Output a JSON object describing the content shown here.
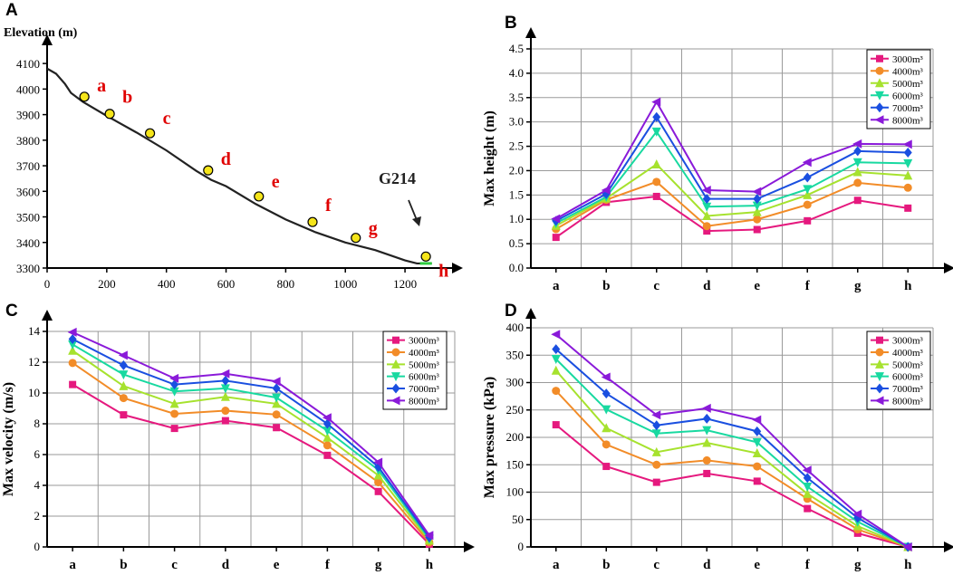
{
  "chart_data": [
    {
      "panel": "A",
      "type": "line",
      "ylabel": "Elevation (m)",
      "xlim": [
        0,
        1300
      ],
      "ylim": [
        3300,
        4150
      ],
      "xticks": [
        0,
        200,
        400,
        600,
        800,
        1000,
        1200
      ],
      "yticks": [
        3300,
        3400,
        3500,
        3600,
        3700,
        3800,
        3900,
        4000,
        4100
      ],
      "profile": {
        "x": [
          0,
          30,
          60,
          80,
          120,
          200,
          300,
          400,
          500,
          550,
          600,
          700,
          800,
          900,
          1000,
          1100,
          1200,
          1240,
          1290
        ],
        "y": [
          4080,
          4060,
          4020,
          3985,
          3950,
          3895,
          3830,
          3760,
          3680,
          3645,
          3620,
          3550,
          3490,
          3440,
          3400,
          3370,
          3330,
          3318,
          3318
        ]
      },
      "points": [
        {
          "label": "a",
          "x": 125,
          "y": 3970
        },
        {
          "label": "b",
          "x": 210,
          "y": 3903
        },
        {
          "label": "c",
          "x": 345,
          "y": 3827
        },
        {
          "label": "d",
          "x": 540,
          "y": 3682
        },
        {
          "label": "e",
          "x": 710,
          "y": 3580
        },
        {
          "label": "f",
          "x": 890,
          "y": 3480
        },
        {
          "label": "g",
          "x": 1035,
          "y": 3418
        },
        {
          "label": "h",
          "x": 1270,
          "y": 3345
        }
      ],
      "annotation": "G214"
    },
    {
      "panel": "B",
      "type": "line",
      "ylabel": "Max height (m)",
      "categories": [
        "a",
        "b",
        "c",
        "d",
        "e",
        "f",
        "g",
        "h"
      ],
      "ylim": [
        0,
        4.5
      ],
      "yticks": [
        "0.0",
        "0.5",
        "1.0",
        "1.5",
        "2.0",
        "2.5",
        "3.0",
        "3.5",
        "4.0",
        "4.5"
      ],
      "legend_position": "top-right",
      "series": [
        {
          "name": "3000m³",
          "values": [
            0.63,
            1.35,
            1.47,
            0.76,
            0.79,
            0.97,
            1.39,
            1.23
          ]
        },
        {
          "name": "4000m³",
          "values": [
            0.8,
            1.4,
            1.77,
            0.86,
            1.0,
            1.3,
            1.75,
            1.65
          ]
        },
        {
          "name": "5000m³",
          "values": [
            0.87,
            1.43,
            2.13,
            1.07,
            1.15,
            1.5,
            1.97,
            1.9
          ]
        },
        {
          "name": "6000m³",
          "values": [
            0.92,
            1.46,
            2.8,
            1.26,
            1.28,
            1.62,
            2.17,
            2.15
          ]
        },
        {
          "name": "7000m³",
          "values": [
            0.97,
            1.52,
            3.1,
            1.42,
            1.42,
            1.86,
            2.4,
            2.37
          ]
        },
        {
          "name": "8000m³",
          "values": [
            1.01,
            1.6,
            3.41,
            1.6,
            1.57,
            2.17,
            2.55,
            2.54
          ]
        }
      ]
    },
    {
      "panel": "C",
      "type": "line",
      "ylabel": "Max velocity (m/s)",
      "categories": [
        "a",
        "b",
        "c",
        "d",
        "e",
        "f",
        "g",
        "h"
      ],
      "ylim": [
        0,
        14
      ],
      "yticks": [
        "0",
        "2",
        "4",
        "6",
        "8",
        "10",
        "12",
        "14"
      ],
      "legend_position": "top-right",
      "series": [
        {
          "name": "3000m³",
          "values": [
            10.55,
            8.58,
            7.7,
            8.2,
            7.75,
            5.95,
            3.6,
            0.18
          ]
        },
        {
          "name": "4000m³",
          "values": [
            11.95,
            9.67,
            8.65,
            8.85,
            8.6,
            6.6,
            4.2,
            0.3
          ]
        },
        {
          "name": "5000m³",
          "values": [
            12.75,
            10.45,
            9.3,
            9.75,
            9.3,
            7.1,
            4.65,
            0.42
          ]
        },
        {
          "name": "6000m³",
          "values": [
            13.15,
            11.2,
            10.1,
            10.3,
            9.7,
            7.55,
            5.0,
            0.52
          ]
        },
        {
          "name": "7000m³",
          "values": [
            13.5,
            11.8,
            10.55,
            10.8,
            10.3,
            8.0,
            5.2,
            0.62
          ]
        },
        {
          "name": "8000m³",
          "values": [
            13.95,
            12.45,
            10.95,
            11.25,
            10.75,
            8.4,
            5.5,
            0.75
          ]
        }
      ]
    },
    {
      "panel": "D",
      "type": "line",
      "ylabel": "Max pressure (kPa)",
      "categories": [
        "a",
        "b",
        "c",
        "d",
        "e",
        "f",
        "g",
        "h"
      ],
      "ylim": [
        0,
        400
      ],
      "yticks": [
        "0",
        "50",
        "100",
        "150",
        "200",
        "250",
        "300",
        "350",
        "400"
      ],
      "legend_position": "top-right",
      "series": [
        {
          "name": "3000m³",
          "values": [
            223,
            147,
            118,
            134,
            120,
            70,
            25,
            0
          ]
        },
        {
          "name": "4000m³",
          "values": [
            285,
            187,
            150,
            158,
            147,
            88,
            32,
            0
          ]
        },
        {
          "name": "5000m³",
          "values": [
            322,
            217,
            173,
            190,
            171,
            97,
            38,
            0
          ]
        },
        {
          "name": "6000m³",
          "values": [
            343,
            251,
            207,
            213,
            191,
            110,
            46,
            0
          ]
        },
        {
          "name": "7000m³",
          "values": [
            361,
            280,
            222,
            234,
            211,
            126,
            53,
            0
          ]
        },
        {
          "name": "8000m³",
          "values": [
            388,
            310,
            241,
            253,
            232,
            140,
            60,
            0
          ]
        }
      ]
    }
  ],
  "series_style": {
    "colors": [
      "#e5197e",
      "#f28c28",
      "#a6e22e",
      "#18d9a0",
      "#1a4fe0",
      "#8a1ad9"
    ],
    "markers": [
      "square",
      "circle",
      "triangle-up",
      "triangle-down",
      "diamond",
      "triangle-left"
    ]
  }
}
